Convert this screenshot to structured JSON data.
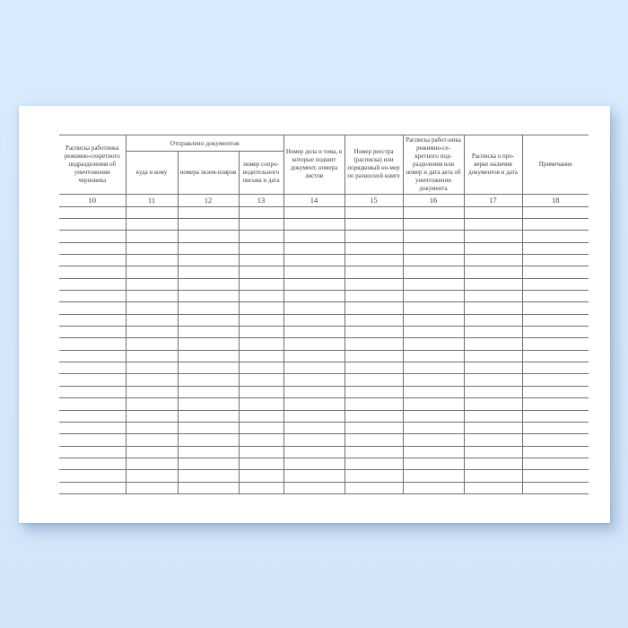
{
  "theme": {
    "background_top": "#d9ebfd",
    "background_bottom": "#d2e5f9",
    "paper": "#ffffff",
    "line": "#707070",
    "text": "#3b3b3b",
    "shadow": "rgba(110,140,180,0.5)"
  },
  "table": {
    "group_header": "Отправлено документов",
    "headers": {
      "col10": "Расписка работника режимно-секретного подразделения об уничтожении черновика",
      "col11": "куда и кому",
      "col12": "номера экзем-пляров",
      "col13": "номер сопро-водительного письма и дата",
      "col14": "Номер дела и тома, в которые подшит документ, номера листов",
      "col15": "Номер реестра (расписка) или порядковый но-мер по разносной книге",
      "col16": "Расписка работ-ника режимно-се-кретного под-разделения или номер и дата акта об уничтожении документа",
      "col17": "Расписка о про-верке наличия документов и дата",
      "col18": "Примечание"
    },
    "column_numbers": [
      "10",
      "11",
      "12",
      "13",
      "14",
      "15",
      "16",
      "17",
      "18"
    ],
    "body_row_count": 24
  }
}
